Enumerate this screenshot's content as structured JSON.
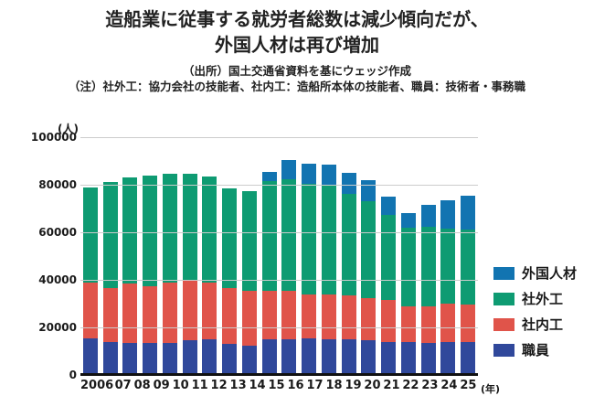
{
  "header": {
    "title_line1": "造船業に従事する就労者総数は減少傾向だが、",
    "title_line2": "外国人材は再び増加",
    "source": "（出所）国土交通省資料を基にウェッジ作成",
    "note": "（注）社外工：協力会社の技能者、社内工：造船所本体の技能者、職員：技術者・事務職"
  },
  "chart_data": {
    "type": "bar",
    "stacked": true,
    "title": "造船業に従事する就労者総数は減少傾向だが、外国人材は再び増加",
    "x_categories": [
      "2006",
      "07",
      "08",
      "09",
      "10",
      "11",
      "12",
      "13",
      "14",
      "15",
      "16",
      "17",
      "18",
      "19",
      "20",
      "21",
      "22",
      "23",
      "24",
      "25"
    ],
    "x_suffix": "(年)",
    "y_unit": "(人)",
    "ylim": [
      0,
      100000
    ],
    "yticks": [
      0,
      20000,
      40000,
      60000,
      80000,
      100000
    ],
    "grid": true,
    "legend_position": "right",
    "series": [
      {
        "name": "職員",
        "color": "#30489B",
        "values": [
          15500,
          14000,
          13500,
          13500,
          13500,
          14500,
          15000,
          13000,
          12500,
          15000,
          15000,
          15500,
          15000,
          15000,
          14500,
          14000,
          14000,
          13500,
          14000,
          14000
        ]
      },
      {
        "name": "社内工",
        "color": "#E0544A",
        "values": [
          23500,
          22500,
          25000,
          24000,
          25500,
          25000,
          24000,
          23500,
          23000,
          20500,
          20500,
          18500,
          19000,
          18500,
          18000,
          17500,
          15000,
          15500,
          16000,
          15500
        ]
      },
      {
        "name": "社外工",
        "color": "#0E9B72",
        "values": [
          40000,
          44500,
          44500,
          46500,
          45500,
          45000,
          44500,
          42000,
          42000,
          46000,
          47000,
          46500,
          45500,
          42500,
          40500,
          36000,
          33000,
          33500,
          31500,
          31500
        ]
      },
      {
        "name": "外国人材",
        "color": "#1274B1",
        "values": [
          0,
          0,
          0,
          0,
          0,
          0,
          0,
          0,
          0,
          4000,
          8000,
          8500,
          9000,
          9000,
          9000,
          7500,
          6000,
          9000,
          12000,
          14500
        ]
      }
    ],
    "totals": [
      79000,
      81000,
      83000,
      84000,
      84500,
      84500,
      83500,
      78500,
      77500,
      85500,
      90500,
      89000,
      88500,
      85000,
      82000,
      75000,
      68000,
      71500,
      73500,
      75500
    ],
    "legend_order": [
      "外国人材",
      "社外工",
      "社内工",
      "職員"
    ],
    "colors": {
      "grid": "#CCCCCC",
      "axis": "#111111",
      "text": "#1A1A1A"
    }
  }
}
